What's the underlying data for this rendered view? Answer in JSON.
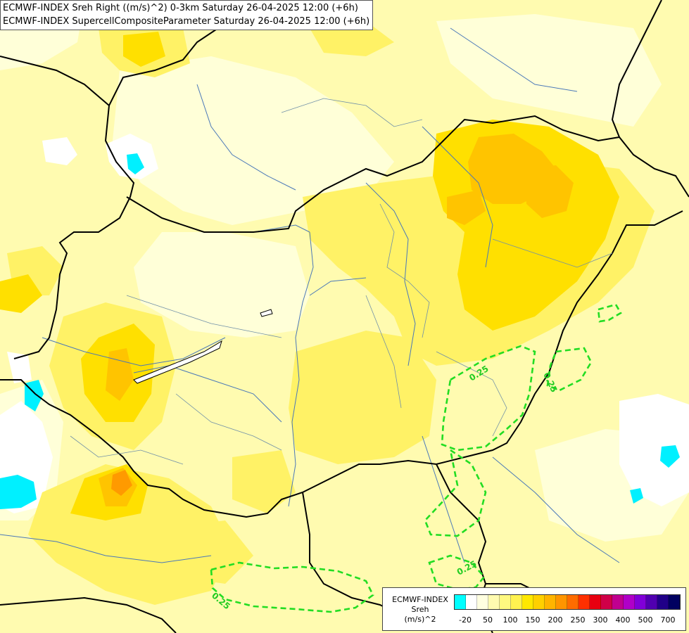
{
  "titles": {
    "line1": "ECMWF-INDEX Sreh Right ((m/s)^2) 0-3km Saturday 26-04-2025 12:00 (+6h)",
    "line2": "ECMWF-INDEX SupercellCompositeParameter Saturday 26-04-2025 12:00 (+6h)"
  },
  "contour_labels": [
    "0.25",
    "0.25",
    "0.25",
    "0.25"
  ],
  "legend": {
    "title_line1": "ECMWF-INDEX",
    "title_line2": "Sreh",
    "title_line3": "(m/s)^2",
    "colors": [
      "#00ffff",
      "#ffffff",
      "#ffffe0",
      "#fffbb0",
      "#fff980",
      "#fff250",
      "#ffe800",
      "#ffd000",
      "#ffb400",
      "#ff9500",
      "#ff6c00",
      "#ff3000",
      "#e80010",
      "#d00048",
      "#c00090",
      "#b000c8",
      "#8000d8",
      "#5000b0",
      "#200088",
      "#000060"
    ],
    "tick_labels": [
      "-20",
      "50",
      "100",
      "150",
      "200",
      "250",
      "300",
      "400",
      "500",
      "700"
    ]
  }
}
